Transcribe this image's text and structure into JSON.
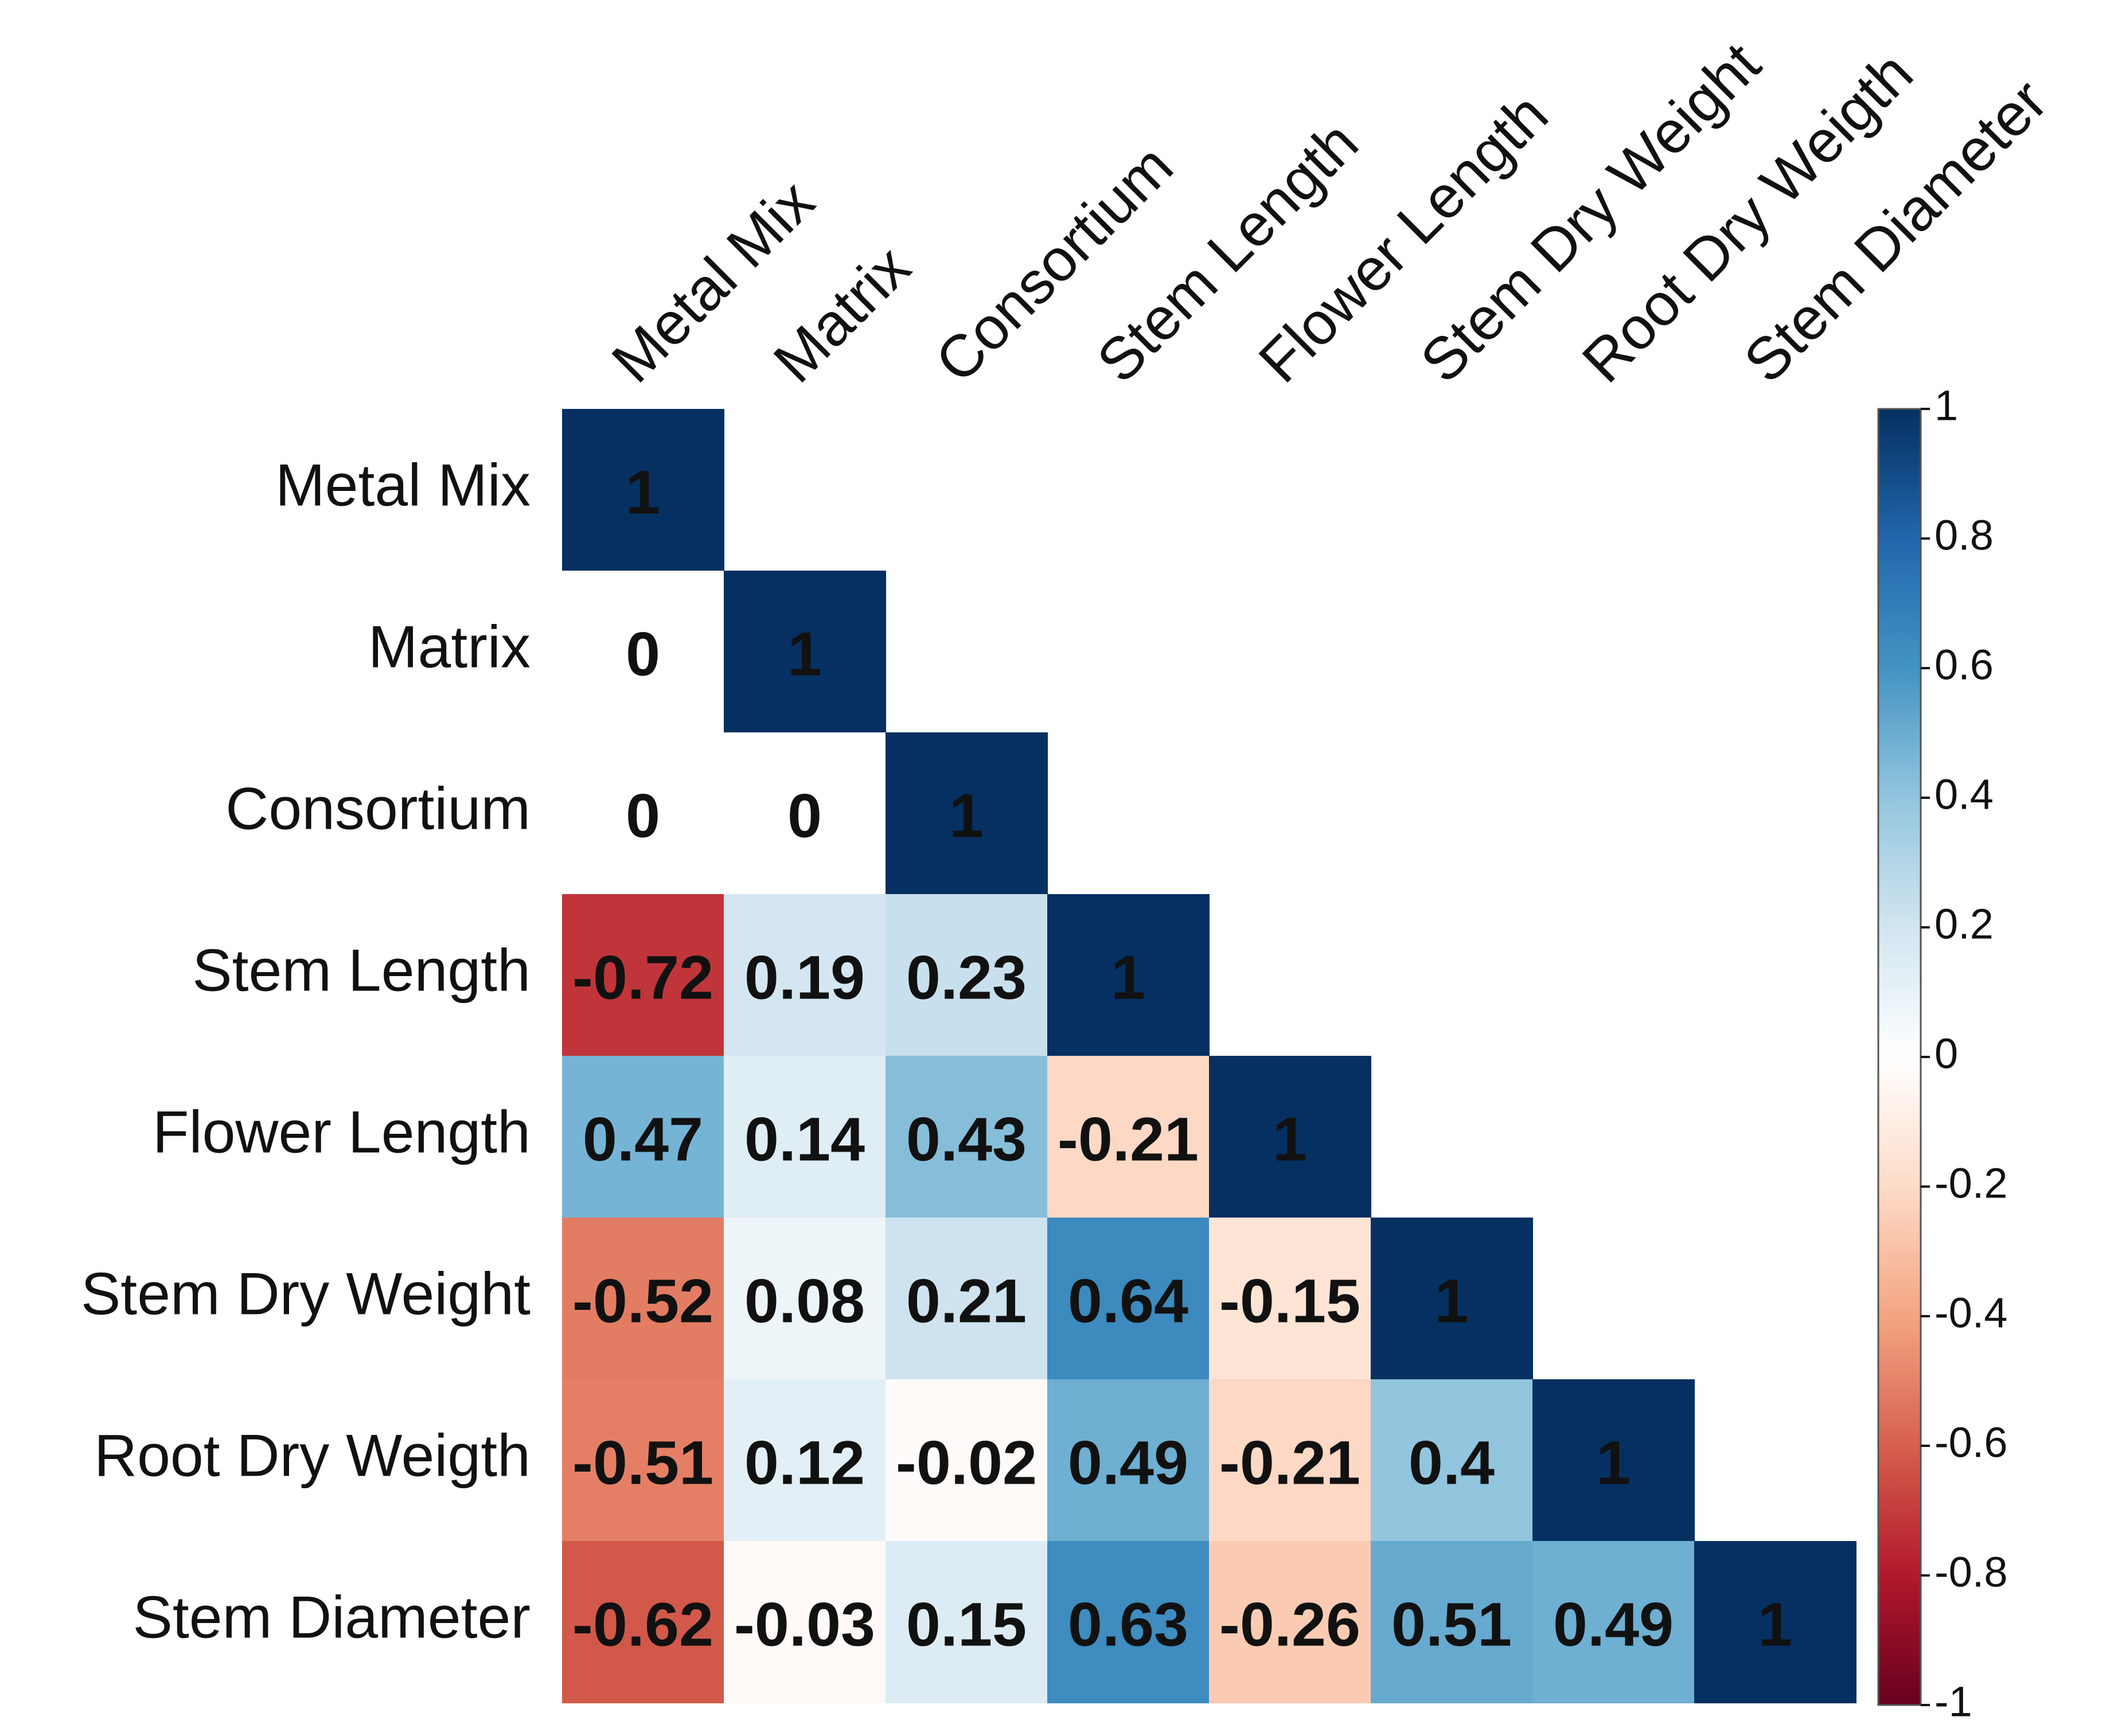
{
  "chart_data": {
    "type": "heatmap",
    "subtype": "correlation-matrix-lower-triangle",
    "variables": [
      "Metal Mix",
      "Matrix",
      "Consortium",
      "Stem Length",
      "Flower Length",
      "Stem Dry Weight",
      "Root Dry Weigth",
      "Stem Diameter"
    ],
    "matrix": [
      [
        1,
        null,
        null,
        null,
        null,
        null,
        null,
        null
      ],
      [
        0,
        1,
        null,
        null,
        null,
        null,
        null,
        null
      ],
      [
        0,
        0,
        1,
        null,
        null,
        null,
        null,
        null
      ],
      [
        -0.72,
        0.19,
        0.23,
        1,
        null,
        null,
        null,
        null
      ],
      [
        0.47,
        0.14,
        0.43,
        -0.21,
        1,
        null,
        null,
        null
      ],
      [
        -0.52,
        0.08,
        0.21,
        0.64,
        -0.15,
        1,
        null,
        null
      ],
      [
        -0.51,
        0.12,
        -0.02,
        0.49,
        -0.21,
        0.4,
        1,
        null
      ],
      [
        -0.62,
        -0.03,
        0.15,
        0.63,
        -0.26,
        0.51,
        0.49,
        1
      ]
    ],
    "cell_labels": [
      [
        "1",
        "",
        "",
        "",
        "",
        "",
        "",
        ""
      ],
      [
        "0",
        "1",
        "",
        "",
        "",
        "",
        "",
        ""
      ],
      [
        "0",
        "0",
        "1",
        "",
        "",
        "",
        "",
        ""
      ],
      [
        "-0.72",
        "0.19",
        "0.23",
        "1",
        "",
        "",
        "",
        ""
      ],
      [
        "0.47",
        "0.14",
        "0.43",
        "-0.21",
        "1",
        "",
        "",
        ""
      ],
      [
        "-0.52",
        "0.08",
        "0.21",
        "0.64",
        "-0.15",
        "1",
        "",
        ""
      ],
      [
        "-0.51",
        "0.12",
        "-0.02",
        "0.49",
        "-0.21",
        "0.4",
        "1",
        ""
      ],
      [
        "-0.62",
        "-0.03",
        "0.15",
        "0.63",
        "-0.26",
        "0.51",
        "0.49",
        "1"
      ]
    ],
    "colorbar": {
      "range": [
        -1,
        1
      ],
      "tick_labels": [
        "1",
        "0.8",
        "0.6",
        "0.4",
        "0.2",
        "0",
        "-0.2",
        "-0.4",
        "-0.6",
        "-0.8",
        "-1"
      ],
      "tick_values": [
        1,
        0.8,
        0.6,
        0.4,
        0.2,
        0,
        -0.2,
        -0.4,
        -0.6,
        -0.8,
        -1
      ],
      "colors": {
        "negative": "#67001f",
        "mid": "#ffffff",
        "positive": "#053061"
      }
    },
    "title": "",
    "xlabel": "",
    "ylabel": ""
  }
}
